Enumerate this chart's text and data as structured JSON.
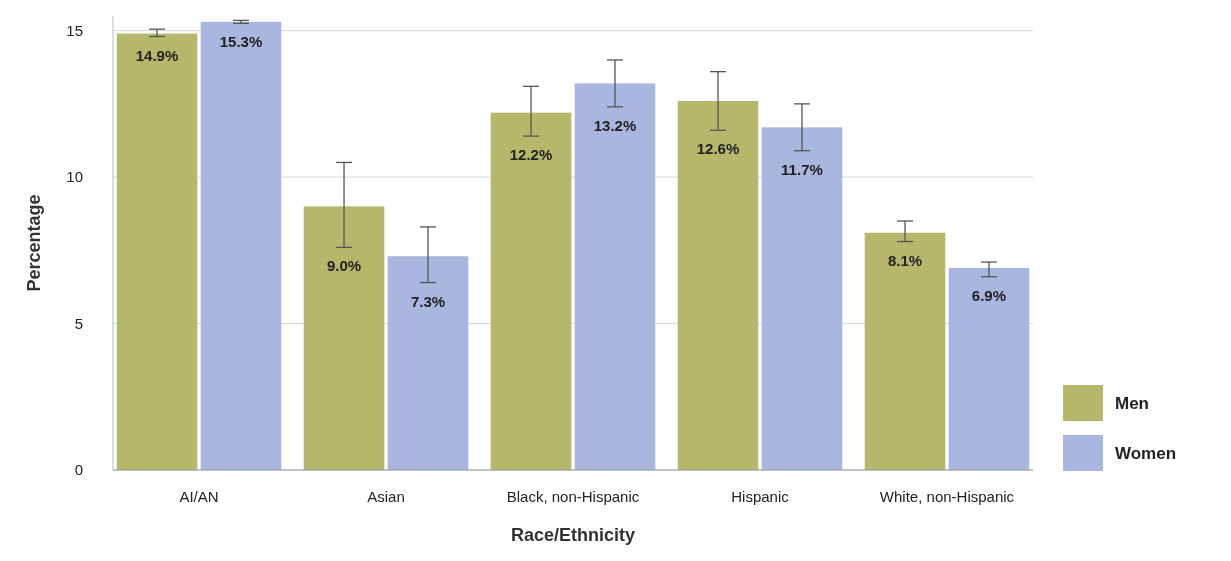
{
  "chart_data": {
    "type": "bar",
    "xlabel": "Race/Ethnicity",
    "ylabel": "Percentage",
    "categories": [
      "AI/AN",
      "Asian",
      "Black, non-Hispanic",
      "Hispanic",
      "White, non-Hispanic"
    ],
    "series": [
      {
        "name": "Men",
        "color": "#b5b86a",
        "values": [
          14.9,
          9.0,
          12.2,
          12.6,
          8.1
        ],
        "errors": [
          [
            14.8,
            15.05
          ],
          [
            7.6,
            10.5
          ],
          [
            11.4,
            13.1
          ],
          [
            11.6,
            13.6
          ],
          [
            7.8,
            8.5
          ]
        ],
        "value_labels": [
          "14.9%",
          "9.0%",
          "12.2%",
          "12.6%",
          "8.1%"
        ]
      },
      {
        "name": "Women",
        "color": "#a9b6e0",
        "values": [
          15.3,
          7.3,
          13.2,
          11.7,
          6.9
        ],
        "errors": [
          [
            15.25,
            15.35
          ],
          [
            6.4,
            8.3
          ],
          [
            12.4,
            14.0
          ],
          [
            10.9,
            12.5
          ],
          [
            6.6,
            7.1
          ]
        ],
        "value_labels": [
          "15.3%",
          "7.3%",
          "13.2%",
          "11.7%",
          "6.9%"
        ]
      }
    ],
    "ylim": [
      0,
      15.5
    ],
    "yticks": [
      0,
      5,
      10,
      15
    ],
    "grid": "y",
    "legend": "right"
  }
}
